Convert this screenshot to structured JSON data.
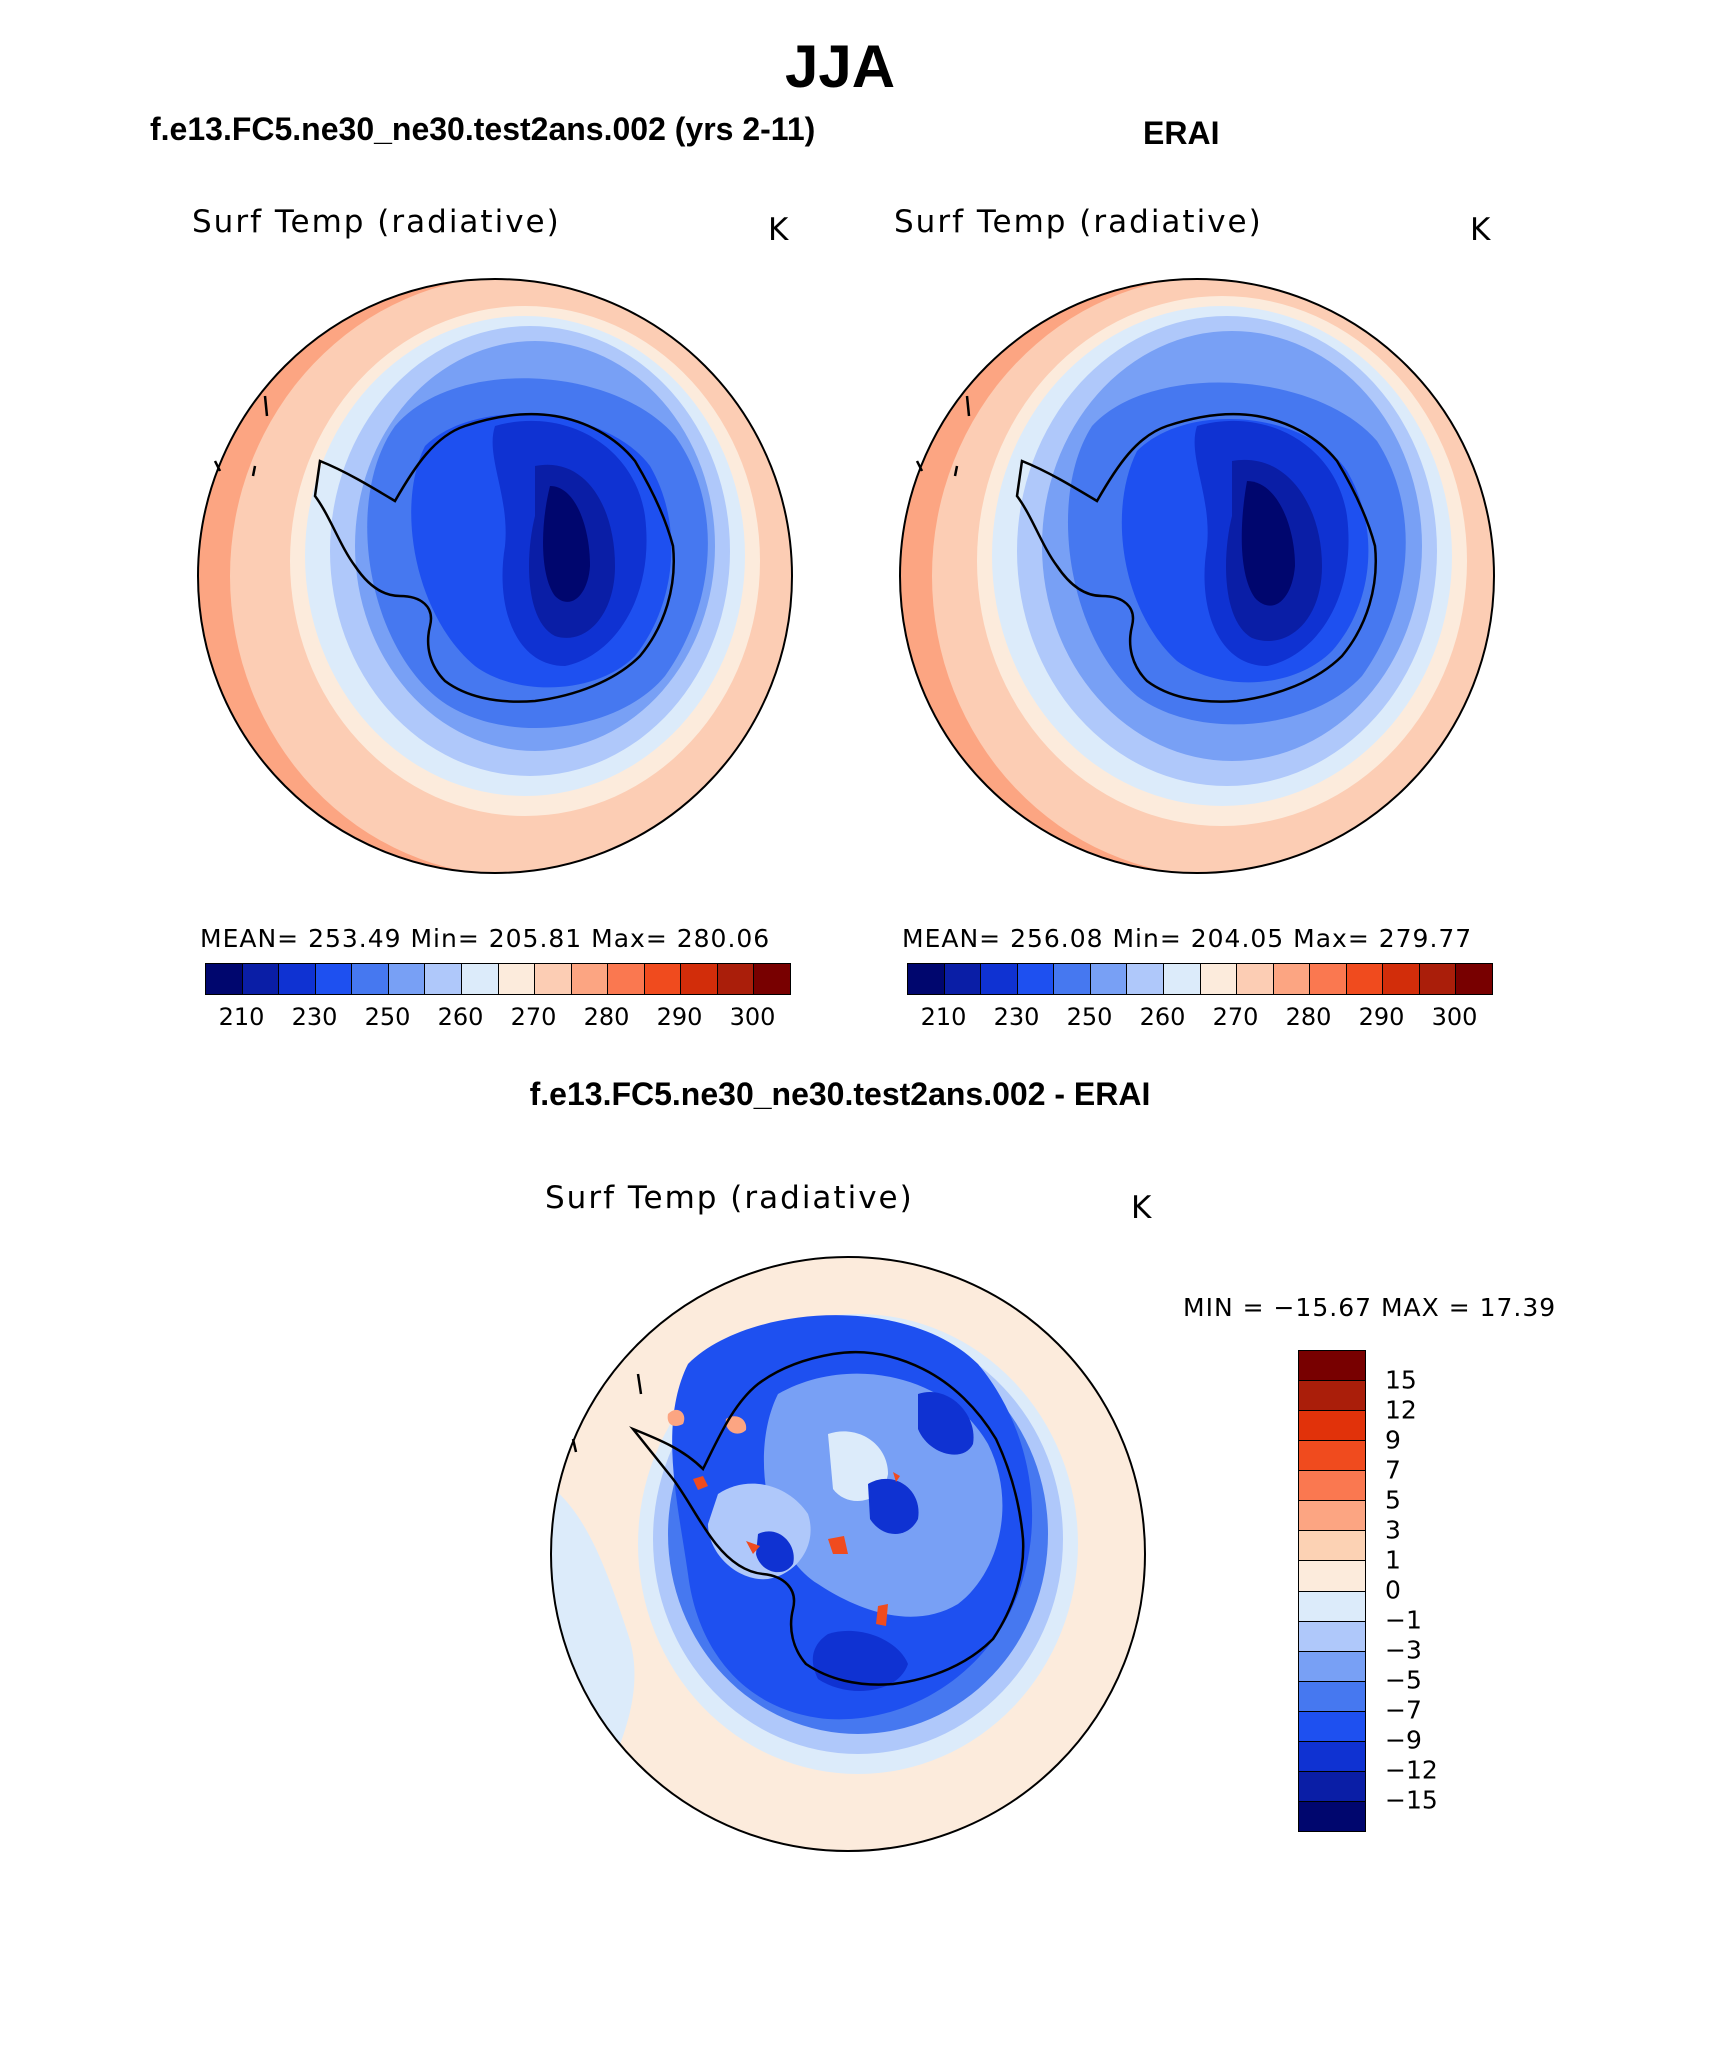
{
  "header": {
    "title": "JJA",
    "left_case": "f.e13.FC5.ne30_ne30.test2ans.002 (yrs 2-11)",
    "right_case": "ERAI",
    "diff_title": "f.e13.FC5.ne30_ne30.test2ans.002 - ERAI"
  },
  "panels": {
    "model": {
      "variable": "Surf Temp (radiative)",
      "unit": "K",
      "stats": "MEAN= 253.49   Min= 205.81   Max= 280.06"
    },
    "obs": {
      "variable": "Surf Temp (radiative)",
      "unit": "K",
      "stats": "MEAN= 256.08   Min= 204.05   Max= 279.77"
    },
    "diff": {
      "variable": "Surf Temp (radiative)",
      "unit": "K",
      "stats": "MIN = −15.67 MAX =   17.39"
    }
  },
  "colorbar": {
    "colors": [
      "#00066e",
      "#0a1ea6",
      "#0f32d2",
      "#1e50f0",
      "#4678f0",
      "#78a0f5",
      "#afc8fa",
      "#dcebfa",
      "#fcebdc",
      "#fccdb4",
      "#fca582",
      "#fa7850",
      "#f04b1e",
      "#d22d0a",
      "#aa1e0a",
      "#780000"
    ],
    "labels": [
      "210",
      "230",
      "250",
      "260",
      "270",
      "280",
      "290",
      "300"
    ]
  },
  "diff_colorbar": {
    "colors": [
      "#780000",
      "#aa1e0a",
      "#e1320a",
      "#f04b1e",
      "#fa7850",
      "#fca582",
      "#fcd2b4",
      "#fcebdc",
      "#dcebfa",
      "#afc8fa",
      "#78a0f5",
      "#4678f0",
      "#1e50f0",
      "#0f32d2",
      "#0a1ea6",
      "#00066e"
    ],
    "labels": [
      "15",
      "12",
      "9",
      "7",
      "5",
      "3",
      "1",
      "0",
      "−1",
      "−3",
      "−5",
      "−7",
      "−9",
      "−12",
      "−15"
    ]
  }
}
